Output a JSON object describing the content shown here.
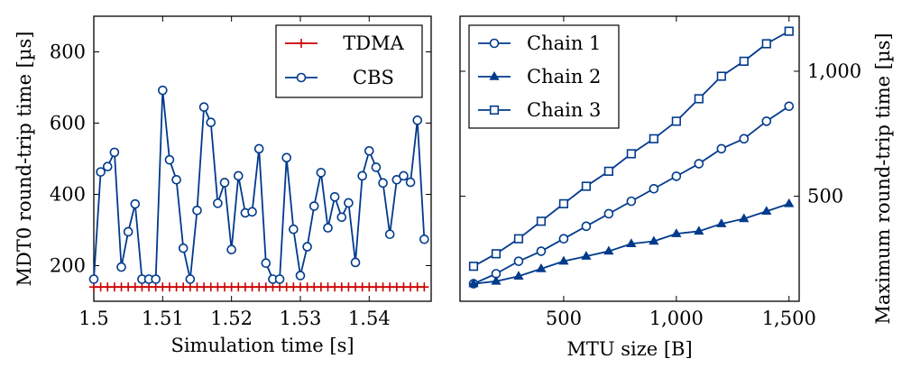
{
  "chart_data": [
    {
      "type": "line",
      "xlabel": "Simulation time [s]",
      "ylabel": "MDT0 round-trip time [µs]",
      "xlim": [
        1.5,
        1.549
      ],
      "ylim": [
        100,
        900
      ],
      "xticks": [
        1.5,
        1.51,
        1.52,
        1.53,
        1.54
      ],
      "xtick_labels": [
        "1.5",
        "1.51",
        "1.52",
        "1.53",
        "1.54"
      ],
      "yticks": [
        200,
        400,
        600,
        800
      ],
      "ytick_labels": [
        "200",
        "400",
        "600",
        "800"
      ],
      "grid": false,
      "legend_position": "top-right",
      "series": [
        {
          "name": "TDMA",
          "color": "#cc0000",
          "marker": "plus",
          "x": [
            1.5,
            1.501,
            1.502,
            1.503,
            1.504,
            1.505,
            1.506,
            1.507,
            1.508,
            1.509,
            1.51,
            1.511,
            1.512,
            1.513,
            1.514,
            1.515,
            1.516,
            1.517,
            1.518,
            1.519,
            1.52,
            1.521,
            1.522,
            1.523,
            1.524,
            1.525,
            1.526,
            1.527,
            1.528,
            1.529,
            1.53,
            1.531,
            1.532,
            1.533,
            1.534,
            1.535,
            1.536,
            1.537,
            1.538,
            1.539,
            1.54,
            1.541,
            1.542,
            1.543,
            1.544,
            1.545,
            1.546,
            1.547,
            1.548
          ],
          "y": [
            140,
            140,
            140,
            140,
            140,
            140,
            140,
            140,
            140,
            140,
            140,
            140,
            140,
            140,
            140,
            140,
            140,
            140,
            140,
            140,
            140,
            140,
            140,
            140,
            140,
            140,
            140,
            140,
            140,
            140,
            140,
            140,
            140,
            140,
            140,
            140,
            140,
            140,
            140,
            140,
            140,
            140,
            140,
            140,
            140,
            140,
            140,
            140,
            140
          ]
        },
        {
          "name": "CBS",
          "color": "#003a8c",
          "marker": "circle",
          "x": [
            1.5,
            1.501,
            1.502,
            1.503,
            1.504,
            1.505,
            1.506,
            1.507,
            1.508,
            1.509,
            1.51,
            1.511,
            1.512,
            1.513,
            1.514,
            1.515,
            1.516,
            1.517,
            1.518,
            1.519,
            1.52,
            1.521,
            1.522,
            1.523,
            1.524,
            1.525,
            1.526,
            1.527,
            1.528,
            1.529,
            1.53,
            1.531,
            1.532,
            1.533,
            1.534,
            1.535,
            1.536,
            1.537,
            1.538,
            1.539,
            1.54,
            1.541,
            1.542,
            1.543,
            1.544,
            1.545,
            1.546,
            1.547,
            1.548
          ],
          "y": [
            162,
            463,
            478,
            518,
            196,
            295,
            373,
            162,
            162,
            162,
            692,
            497,
            441,
            249,
            162,
            355,
            645,
            602,
            375,
            433,
            245,
            452,
            348,
            351,
            528,
            207,
            162,
            162,
            503,
            302,
            172,
            253,
            367,
            461,
            306,
            393,
            336,
            376,
            209,
            452,
            522,
            476,
            432,
            288,
            441,
            452,
            434,
            608,
            274
          ]
        }
      ]
    },
    {
      "type": "line",
      "xlabel": "MTU size [B]",
      "ylabel": "Maximum round-trip time [µs]",
      "xlim": [
        40,
        1545
      ],
      "ylim": [
        80,
        1220
      ],
      "xticks": [
        500,
        1000,
        1500
      ],
      "xtick_labels": [
        "500",
        "1,000",
        "1,500"
      ],
      "yticks": [
        500,
        1000
      ],
      "ytick_labels": [
        "500",
        "1,000"
      ],
      "y_axis_side": "right",
      "grid": false,
      "legend_position": "top-left",
      "series": [
        {
          "name": "Chain 1",
          "color": "#003a8c",
          "marker": "circle",
          "x": [
            100,
            200,
            300,
            400,
            500,
            600,
            700,
            800,
            900,
            1000,
            1100,
            1200,
            1300,
            1400,
            1500
          ],
          "y": [
            150,
            190,
            240,
            280,
            330,
            380,
            430,
            480,
            530,
            580,
            630,
            690,
            730,
            800,
            860
          ]
        },
        {
          "name": "Chain 2",
          "color": "#003a8c",
          "marker": "triangle",
          "x": [
            100,
            200,
            300,
            400,
            500,
            600,
            700,
            800,
            900,
            1000,
            1100,
            1200,
            1300,
            1400,
            1500
          ],
          "y": [
            150,
            160,
            180,
            210,
            240,
            260,
            280,
            310,
            320,
            350,
            360,
            390,
            410,
            440,
            470
          ]
        },
        {
          "name": "Chain 3",
          "color": "#003a8c",
          "marker": "square",
          "x": [
            100,
            200,
            300,
            400,
            500,
            600,
            700,
            800,
            900,
            1000,
            1100,
            1200,
            1300,
            1400,
            1500
          ],
          "y": [
            220,
            270,
            330,
            400,
            470,
            540,
            600,
            670,
            730,
            800,
            890,
            980,
            1040,
            1110,
            1160
          ]
        }
      ]
    }
  ]
}
